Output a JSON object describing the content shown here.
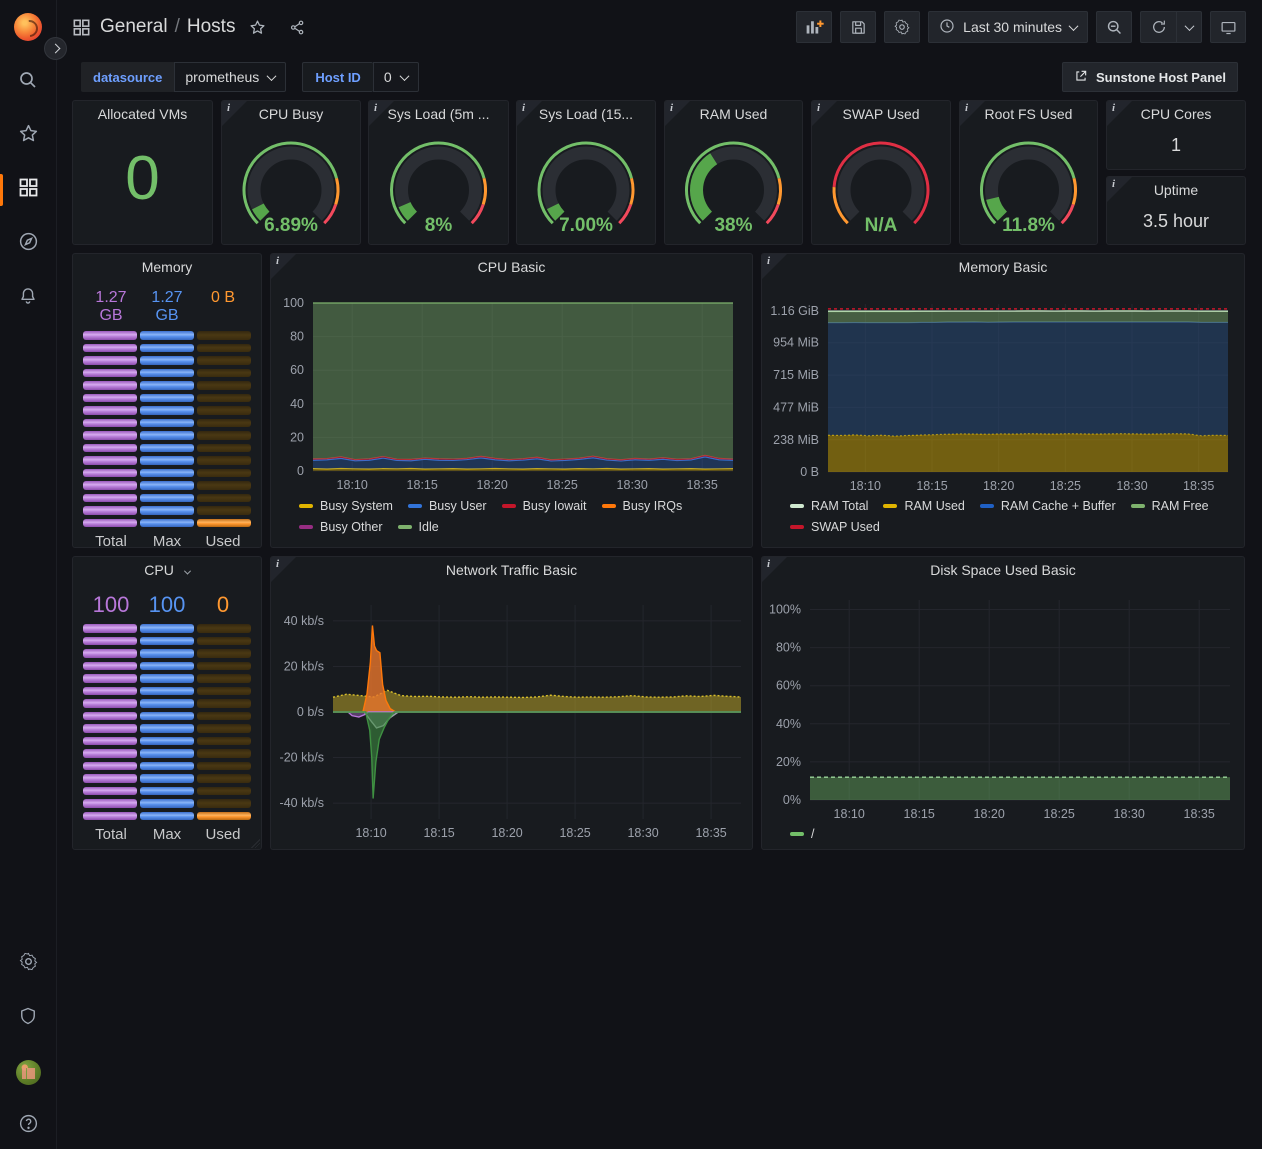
{
  "navbar": {
    "breadcrumb": {
      "section": "General",
      "separator": "/",
      "page": "Hosts"
    },
    "time_range": {
      "label": "Last 30 minutes"
    },
    "tooltips": [
      "add-panel",
      "save-dashboard",
      "dashboard-settings",
      "time-range",
      "zoom-out",
      "refresh",
      "refresh-interval",
      "cycle-view-mode"
    ]
  },
  "toolbar": {
    "datasource": {
      "label": "datasource",
      "value": "prometheus"
    },
    "host_id": {
      "label": "Host ID",
      "value": "0"
    },
    "link_button": {
      "label": "Sunstone Host Panel"
    }
  },
  "colors": {
    "green": "#73bf69",
    "gauge_fill": "#56a64b",
    "orange": "#ff9830",
    "red": "#f2495c",
    "purple": "#b877d9",
    "blue": "#5794f2",
    "accent_active": "#ff780a",
    "link_blue": "#6e9fff"
  },
  "stats": [
    {
      "title": "Allocated VMs",
      "type": "big",
      "value": "0",
      "info": false
    },
    {
      "title": "CPU Busy",
      "type": "gauge",
      "value": "6.89%",
      "pct": 6.89,
      "info": true
    },
    {
      "title": "Sys Load (5m ...",
      "type": "gauge",
      "value": "8%",
      "pct": 8,
      "info": true
    },
    {
      "title": "Sys Load (15...",
      "type": "gauge",
      "value": "7.00%",
      "pct": 7,
      "info": true
    },
    {
      "title": "RAM Used",
      "type": "gauge",
      "value": "38%",
      "pct": 38,
      "info": true
    },
    {
      "title": "SWAP Used",
      "type": "gauge",
      "value": "N/A",
      "pct": 0,
      "swap": true,
      "info": true
    },
    {
      "title": "Root FS Used",
      "type": "gauge",
      "value": "11.8%",
      "pct": 11.8,
      "info": true
    },
    {
      "title": "CPU Cores",
      "type": "text",
      "value": "1",
      "info": true
    },
    {
      "title": "Uptime",
      "type": "text",
      "value": "3.5 hour",
      "info": true
    }
  ],
  "thresholds_normal": [
    [
      0,
      0.78,
      "#73bf69"
    ],
    [
      0.78,
      0.9,
      "#ff9830"
    ],
    [
      0.9,
      1,
      "#f2495c"
    ]
  ],
  "thresholds_swap": [
    [
      0,
      0.18,
      "#ff9830"
    ],
    [
      0.18,
      1,
      "#e02f44"
    ]
  ],
  "memory_panel": {
    "title": "Memory",
    "columns": [
      {
        "label": "Total",
        "value": "1.27 GB",
        "color": "purple",
        "lit": 16,
        "cells": 16
      },
      {
        "label": "Max",
        "value": "1.27 GB",
        "color": "blue",
        "lit": 16,
        "cells": 16
      },
      {
        "label": "Used",
        "value": "0 B",
        "color": "orange",
        "lit": 1,
        "cells": 16
      }
    ],
    "value_size": 16
  },
  "cpu_panel": {
    "title": "CPU",
    "columns": [
      {
        "label": "Total",
        "value": "100",
        "color": "purple",
        "lit": 16,
        "cells": 16
      },
      {
        "label": "Max",
        "value": "100",
        "color": "blue",
        "lit": 16,
        "cells": 16
      },
      {
        "label": "Used",
        "value": "0",
        "color": "orange",
        "lit": 1,
        "cells": 16
      }
    ],
    "value_size": 22
  },
  "chart_data": [
    {
      "key": "cpu_basic",
      "type": "area",
      "title": "CPU Basic",
      "xrange": [
        0,
        30
      ],
      "ylim": [
        0,
        100
      ],
      "grid": true,
      "legend_position": "bottom",
      "yticks": [
        {
          "v": 0,
          "label": "0"
        },
        {
          "v": 20,
          "label": "20"
        },
        {
          "v": 40,
          "label": "40"
        },
        {
          "v": 60,
          "label": "60"
        },
        {
          "v": 80,
          "label": "80"
        },
        {
          "v": 100,
          "label": "100"
        }
      ],
      "xticks": [
        {
          "m": 2.8,
          "label": "18:10"
        },
        {
          "m": 7.8,
          "label": "18:15"
        },
        {
          "m": 12.8,
          "label": "18:20"
        },
        {
          "m": 17.8,
          "label": "18:25"
        },
        {
          "m": 22.8,
          "label": "18:30"
        },
        {
          "m": 27.8,
          "label": "18:35"
        }
      ],
      "legend": [
        {
          "label": "Busy System",
          "color": "#e0b400"
        },
        {
          "label": "Busy User",
          "color": "#3274d9"
        },
        {
          "label": "Busy Iowait",
          "color": "#c4162a"
        },
        {
          "label": "Busy IRQs",
          "color": "#ff780a"
        },
        {
          "label": "Busy Other",
          "color": "#962d82"
        },
        {
          "label": "Idle",
          "color": "#7eb26d"
        }
      ],
      "series": [
        {
          "name": "Busy System",
          "color": "#e0b400",
          "fill": "rgba(224,180,0,0.32)",
          "stack": true,
          "values": [
            1.4,
            1.2,
            1.5,
            1.3,
            1.2,
            1.4,
            1.3,
            1.5,
            1.2,
            1.3,
            1.4,
            1.2,
            1.3,
            1.5,
            1.3,
            1.2,
            1.4,
            1.3,
            1.2,
            1.4,
            1.3,
            1.5,
            1.2,
            1.3,
            1.4,
            1.2,
            1.3,
            1.4,
            1.2,
            1.3,
            1.4
          ]
        },
        {
          "name": "Busy User",
          "color": "#3274d9",
          "fill": "rgba(50,116,217,0.30)",
          "stack": true,
          "values": [
            5.0,
            5.5,
            6.0,
            4.8,
            5.2,
            6.3,
            5.0,
            4.6,
            5.8,
            5.1,
            4.9,
            5.6,
            6.5,
            5.2,
            4.8,
            5.3,
            5.9,
            4.7,
            5.1,
            5.5,
            6.6,
            5.0,
            4.8,
            5.4,
            5.0,
            5.8,
            4.9,
            5.2,
            7.2,
            5.4,
            5.0
          ]
        },
        {
          "name": "Busy Iowait",
          "color": "#c4162a",
          "fill": "rgba(196,22,42,0.25)",
          "stack": true,
          "values": [
            0.8,
            0.7,
            0.9,
            0.7,
            0.8,
            0.9,
            0.7,
            0.8,
            0.7,
            0.9,
            0.8,
            0.7,
            0.9,
            0.8,
            0.7,
            0.8,
            0.9,
            0.7,
            0.8,
            0.7,
            0.9,
            0.8,
            0.7,
            0.8,
            0.7,
            0.9,
            0.8,
            0.7,
            0.9,
            0.8,
            0.7
          ]
        },
        {
          "name": "Busy IRQs",
          "color": "#ff780a",
          "const": 0,
          "hidden": true
        },
        {
          "name": "Busy Other",
          "color": "#962d82",
          "const": 0,
          "hidden": true
        },
        {
          "name": "Idle",
          "color": "#7eb26d",
          "fill": "rgba(126,178,109,0.42)",
          "stack": true,
          "values": [
            92.8,
            92.6,
            91.6,
            93.2,
            92.8,
            91.4,
            93.0,
            93.1,
            92.3,
            92.7,
            92.9,
            92.5,
            91.3,
            92.5,
            93.2,
            92.7,
            91.8,
            93.3,
            92.9,
            92.4,
            91.2,
            92.7,
            93.3,
            92.5,
            92.9,
            92.1,
            93.0,
            92.7,
            90.7,
            92.5,
            92.9
          ]
        }
      ]
    },
    {
      "key": "memory_basic",
      "type": "area",
      "title": "Memory Basic",
      "xrange": [
        0,
        30
      ],
      "ylim": [
        0,
        1240
      ],
      "grid": true,
      "legend_position": "bottom",
      "yticks": [
        {
          "v": 0,
          "label": "0 B"
        },
        {
          "v": 238,
          "label": "238 MiB"
        },
        {
          "v": 477,
          "label": "477 MiB"
        },
        {
          "v": 715,
          "label": "715 MiB"
        },
        {
          "v": 954,
          "label": "954 MiB"
        },
        {
          "v": 1188,
          "label": "1.16 GiB"
        }
      ],
      "xticks": [
        {
          "m": 2.8,
          "label": "18:10"
        },
        {
          "m": 7.8,
          "label": "18:15"
        },
        {
          "m": 12.8,
          "label": "18:20"
        },
        {
          "m": 17.8,
          "label": "18:25"
        },
        {
          "m": 22.8,
          "label": "18:30"
        },
        {
          "m": 27.8,
          "label": "18:35"
        }
      ],
      "legend": [
        {
          "label": "RAM Total",
          "color": "#cfe8cf"
        },
        {
          "label": "RAM Used",
          "color": "#e0b400"
        },
        {
          "label": "RAM Cache + Buffer",
          "color": "#1f60c4"
        },
        {
          "label": "RAM Free",
          "color": "#7eb26d"
        },
        {
          "label": "SWAP Used",
          "color": "#c4162a"
        }
      ],
      "series": [
        {
          "name": "RAM Used",
          "color": "#e0b400",
          "fill": "rgba(224,180,0,0.45)",
          "stack": true,
          "dash": "2,2",
          "values": [
            272,
            270,
            275,
            268,
            272,
            266,
            270,
            274,
            276,
            280,
            282,
            281,
            280,
            282,
            281,
            283,
            282,
            281,
            283,
            282,
            281,
            282,
            283,
            282,
            281,
            282,
            283,
            282,
            268,
            272,
            270
          ]
        },
        {
          "name": "RAM Cache + Buffer",
          "color": "#3a5e8a",
          "fill": "rgba(40,72,116,0.55)",
          "stack": true,
          "values": [
            830,
            832,
            828,
            834,
            830,
            836,
            832,
            830,
            828,
            826,
            824,
            826,
            825,
            824,
            826,
            824,
            825,
            826,
            824,
            825,
            826,
            825,
            824,
            825,
            826,
            825,
            824,
            825,
            836,
            832,
            834
          ]
        },
        {
          "name": "RAM Free",
          "color": "#7eb26d",
          "fill": "rgba(126,178,109,0.45)",
          "stack": true,
          "values": [
            82,
            82,
            81,
            82,
            82,
            82,
            82,
            82,
            82,
            82,
            82,
            81,
            82,
            82,
            81,
            82,
            82,
            81,
            82,
            82,
            81,
            82,
            82,
            82,
            81,
            82,
            82,
            82,
            82,
            82,
            81
          ]
        },
        {
          "name": "RAM Total",
          "color": "#cfe8cf",
          "const": 1188,
          "line_only": true,
          "width": 1.2
        },
        {
          "name": "SWAP Used",
          "color": "#c4162a",
          "const": 1204,
          "line_only": true,
          "dash": "3,3",
          "width": 1.5
        }
      ]
    },
    {
      "key": "network_traffic",
      "type": "area",
      "title": "Network Traffic Basic",
      "xrange": [
        0,
        30
      ],
      "ylim": [
        -47,
        47
      ],
      "grid": true,
      "legend_position": "none",
      "yticks": [
        {
          "v": -40,
          "label": "-40 kb/s"
        },
        {
          "v": -20,
          "label": "-20 kb/s"
        },
        {
          "v": 0,
          "label": "0 b/s"
        },
        {
          "v": 20,
          "label": "20 kb/s"
        },
        {
          "v": 40,
          "label": "40 kb/s"
        }
      ],
      "xticks": [
        {
          "m": 2.8,
          "label": "18:10"
        },
        {
          "m": 7.8,
          "label": "18:15"
        },
        {
          "m": 12.8,
          "label": "18:20"
        },
        {
          "m": 17.8,
          "label": "18:25"
        },
        {
          "m": 22.8,
          "label": "18:30"
        },
        {
          "m": 27.8,
          "label": "18:35"
        }
      ],
      "legend": [],
      "series": [
        {
          "name": "receive (yellow)",
          "color": "#d9bf2b",
          "fill": "rgba(217,191,43,0.45)",
          "dash": "2,2",
          "width": 1.4,
          "values": [
            6.5,
            7.8,
            7.2,
            6.6,
            9.5,
            7.2,
            6.8,
            6.9,
            6.6,
            6.5,
            6.7,
            6.5,
            6.6,
            6.5,
            6.4,
            6.6,
            7.4,
            6.8,
            6.5,
            6.6,
            6.5,
            6.7,
            7.2,
            6.6,
            6.5,
            6.6,
            7.1,
            6.8,
            7.3,
            6.9,
            6.6
          ]
        },
        {
          "name": "receive burst (orange)",
          "color": "#ff780a",
          "fill": "rgba(232,118,44,0.80)",
          "width": 1.4,
          "points": [
            [
              0,
              0
            ],
            [
              2.2,
              0
            ],
            [
              2.5,
              8
            ],
            [
              2.75,
              22
            ],
            [
              2.9,
              38
            ],
            [
              3.05,
              29
            ],
            [
              3.2,
              27
            ],
            [
              3.45,
              26
            ],
            [
              3.65,
              12
            ],
            [
              3.9,
              5
            ],
            [
              4.2,
              1.5
            ],
            [
              4.6,
              0
            ],
            [
              30,
              0
            ]
          ]
        },
        {
          "name": "transmit small (purple)",
          "color": "#b877d9",
          "fill": "rgba(184,119,217,0.4)",
          "width": 1.4,
          "points": [
            [
              0,
              0
            ],
            [
              1.1,
              0
            ],
            [
              1.4,
              -1.6
            ],
            [
              1.9,
              -2.2
            ],
            [
              2.3,
              -1.2
            ],
            [
              2.6,
              0
            ],
            [
              30,
              0
            ]
          ]
        },
        {
          "name": "transmit gray",
          "color": "#9aa0a8",
          "fill": "rgba(150,160,170,0.35)",
          "width": 1.4,
          "points": [
            [
              0,
              0
            ],
            [
              2.3,
              0
            ],
            [
              2.8,
              -4
            ],
            [
              3.2,
              -7
            ],
            [
              3.7,
              -6
            ],
            [
              4.2,
              -2.5
            ],
            [
              4.8,
              0
            ],
            [
              30,
              0
            ]
          ]
        },
        {
          "name": "transmit (green)",
          "color": "#3f9142",
          "fill": "rgba(63,145,66,0.55)",
          "width": 1.4,
          "points": [
            [
              0,
              0
            ],
            [
              2.4,
              0
            ],
            [
              2.7,
              -8
            ],
            [
              2.85,
              -20
            ],
            [
              2.95,
              -38
            ],
            [
              3.15,
              -22
            ],
            [
              3.4,
              -12
            ],
            [
              3.75,
              -7
            ],
            [
              4.1,
              -3
            ],
            [
              4.5,
              0
            ],
            [
              30,
              0
            ]
          ]
        }
      ]
    },
    {
      "key": "disk_space",
      "type": "area",
      "title": "Disk Space Used Basic",
      "xrange": [
        0,
        30
      ],
      "ylim": [
        0,
        105
      ],
      "grid": true,
      "legend_position": "bottom",
      "yticks": [
        {
          "v": 0,
          "label": "0%"
        },
        {
          "v": 20,
          "label": "20%"
        },
        {
          "v": 40,
          "label": "40%"
        },
        {
          "v": 60,
          "label": "60%"
        },
        {
          "v": 80,
          "label": "80%"
        },
        {
          "v": 100,
          "label": "100%"
        }
      ],
      "xticks": [
        {
          "m": 2.8,
          "label": "18:10"
        },
        {
          "m": 7.8,
          "label": "18:15"
        },
        {
          "m": 12.8,
          "label": "18:20"
        },
        {
          "m": 17.8,
          "label": "18:25"
        },
        {
          "m": 22.8,
          "label": "18:30"
        },
        {
          "m": 27.8,
          "label": "18:35"
        }
      ],
      "legend": [
        {
          "label": "/",
          "color": "#73bf69"
        }
      ],
      "series": [
        {
          "name": "/",
          "color": "#9bd59b",
          "fill": "rgba(115,191,105,0.40)",
          "dash": "4,3",
          "width": 1.4,
          "values": [
            12,
            12,
            12,
            12,
            12,
            12,
            12,
            12,
            12,
            12,
            12,
            12,
            12,
            12,
            12,
            12,
            12,
            12,
            12,
            12,
            12,
            12,
            12,
            12,
            12,
            12,
            12,
            12,
            12,
            12,
            12
          ]
        }
      ]
    }
  ]
}
